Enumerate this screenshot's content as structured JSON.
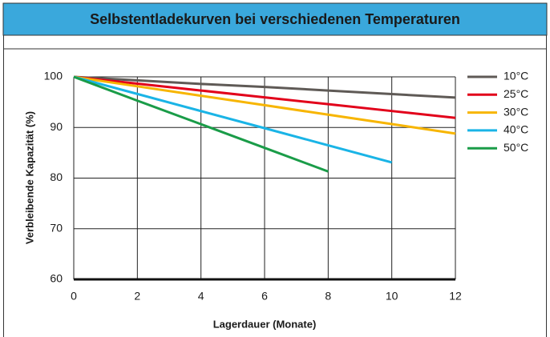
{
  "chart_data": {
    "type": "line",
    "title": "Selbstentladekurven bei verschiedenen Temperaturen",
    "xlabel": "Lagerdauer (Monate)",
    "ylabel": "Verbleibende Kapazität (%)",
    "x": [
      0,
      2,
      4,
      6,
      8,
      10,
      12
    ],
    "series": [
      {
        "name": "10°C",
        "color": "#5f5a56",
        "values": [
          100,
          99.3,
          98.6,
          98.0,
          97.3,
          96.6,
          95.9
        ]
      },
      {
        "name": "25°C",
        "color": "#e2001a",
        "values": [
          100,
          98.65,
          97.3,
          95.95,
          94.6,
          93.25,
          91.9
        ]
      },
      {
        "name": "30°C",
        "color": "#f7b500",
        "values": [
          100,
          98.13,
          96.27,
          94.4,
          92.53,
          90.67,
          88.8
        ]
      },
      {
        "name": "40°C",
        "color": "#1ab4e6",
        "values": [
          100,
          96.62,
          93.24,
          89.86,
          86.48,
          83.1,
          null
        ]
      },
      {
        "name": "50°C",
        "color": "#1a9c48",
        "values": [
          100,
          95.3,
          90.65,
          85.98,
          81.3,
          null,
          null
        ]
      }
    ],
    "xlim": [
      0,
      12
    ],
    "xticks": [
      0,
      2,
      4,
      6,
      8,
      10,
      12
    ],
    "ylim": [
      60,
      100
    ],
    "yticks": [
      60,
      70,
      80,
      90,
      100
    ],
    "grid": true,
    "legend": "right"
  }
}
